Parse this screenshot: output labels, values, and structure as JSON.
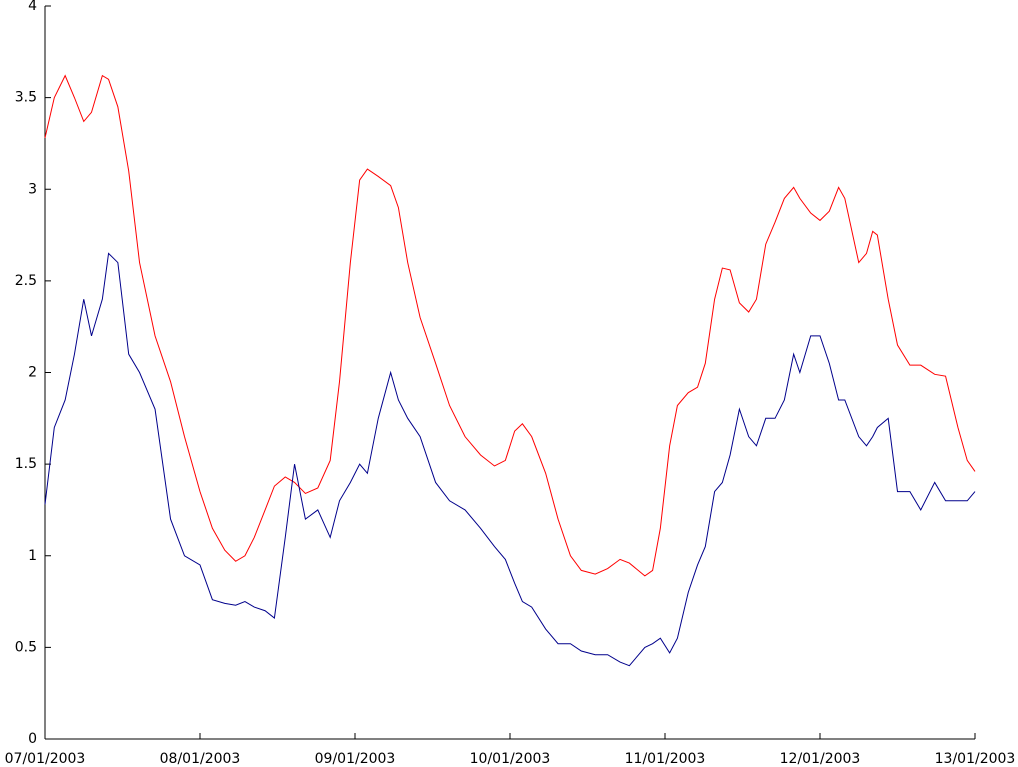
{
  "chart_data": {
    "type": "line",
    "x": [
      0,
      0.06,
      0.13,
      0.19,
      0.25,
      0.3,
      0.37,
      0.41,
      0.47,
      0.54,
      0.61,
      0.71,
      0.81,
      0.9,
      1.0,
      1.08,
      1.16,
      1.23,
      1.29,
      1.35,
      1.42,
      1.48,
      1.55,
      1.61,
      1.68,
      1.76,
      1.84,
      1.9,
      1.97,
      2.03,
      2.08,
      2.15,
      2.23,
      2.28,
      2.34,
      2.42,
      2.52,
      2.61,
      2.71,
      2.81,
      2.9,
      2.97,
      3.03,
      3.08,
      3.14,
      3.23,
      3.31,
      3.39,
      3.46,
      3.55,
      3.63,
      3.71,
      3.77,
      3.87,
      3.92,
      3.97,
      4.03,
      4.08,
      4.15,
      4.21,
      4.26,
      4.32,
      4.37,
      4.42,
      4.48,
      4.54,
      4.59,
      4.65,
      4.71,
      4.77,
      4.83,
      4.87,
      4.94,
      5.0,
      5.06,
      5.12,
      5.16,
      5.25,
      5.3,
      5.34,
      5.37,
      5.44,
      5.5,
      5.58,
      5.65,
      5.74,
      5.81,
      5.89,
      5.95,
      6.0
    ],
    "series": [
      {
        "color": "#ff0000",
        "values": [
          3.28,
          3.5,
          3.62,
          3.5,
          3.37,
          3.42,
          3.62,
          3.6,
          3.45,
          3.1,
          2.6,
          2.2,
          1.95,
          1.65,
          1.35,
          1.15,
          1.03,
          0.97,
          1.0,
          1.1,
          1.25,
          1.38,
          1.43,
          1.4,
          1.34,
          1.37,
          1.52,
          1.95,
          2.6,
          3.05,
          3.11,
          3.07,
          3.02,
          2.9,
          2.6,
          2.3,
          2.05,
          1.82,
          1.65,
          1.55,
          1.49,
          1.52,
          1.68,
          1.72,
          1.65,
          1.45,
          1.2,
          1.0,
          0.92,
          0.9,
          0.93,
          0.98,
          0.96,
          0.89,
          0.92,
          1.15,
          1.6,
          1.82,
          1.89,
          1.92,
          2.05,
          2.4,
          2.57,
          2.56,
          2.38,
          2.33,
          2.4,
          2.7,
          2.82,
          2.95,
          3.01,
          2.95,
          2.87,
          2.83,
          2.88,
          3.01,
          2.95,
          2.6,
          2.65,
          2.77,
          2.75,
          2.4,
          2.15,
          2.04,
          2.04,
          1.99,
          1.98,
          1.7,
          1.52,
          1.46
        ]
      },
      {
        "color": "#00008b",
        "values": [
          1.28,
          1.7,
          1.85,
          2.1,
          2.4,
          2.2,
          2.4,
          2.65,
          2.6,
          2.1,
          2.0,
          1.8,
          1.2,
          1.0,
          0.95,
          0.76,
          0.74,
          0.73,
          0.75,
          0.72,
          0.7,
          0.66,
          1.1,
          1.5,
          1.2,
          1.25,
          1.1,
          1.3,
          1.4,
          1.5,
          1.45,
          1.75,
          2.0,
          1.85,
          1.75,
          1.65,
          1.4,
          1.3,
          1.25,
          1.15,
          1.05,
          0.98,
          0.85,
          0.75,
          0.72,
          0.6,
          0.52,
          0.52,
          0.48,
          0.46,
          0.46,
          0.42,
          0.4,
          0.5,
          0.52,
          0.55,
          0.47,
          0.55,
          0.8,
          0.95,
          1.05,
          1.35,
          1.4,
          1.55,
          1.8,
          1.65,
          1.6,
          1.75,
          1.75,
          1.85,
          2.1,
          2.0,
          2.2,
          2.2,
          2.05,
          1.85,
          1.85,
          1.65,
          1.6,
          1.65,
          1.7,
          1.75,
          1.35,
          1.35,
          1.25,
          1.4,
          1.3,
          1.3,
          1.3,
          1.35
        ]
      }
    ],
    "xlim": [
      0,
      6
    ],
    "xticks": [
      {
        "value": 0,
        "label": "07/01/2003"
      },
      {
        "value": 1,
        "label": "08/01/2003"
      },
      {
        "value": 2,
        "label": "09/01/2003"
      },
      {
        "value": 3,
        "label": "10/01/2003"
      },
      {
        "value": 4,
        "label": "11/01/2003"
      },
      {
        "value": 5,
        "label": "12/01/2003"
      },
      {
        "value": 6,
        "label": "13/01/2003"
      }
    ],
    "ylim": [
      0,
      4
    ],
    "yticks": [
      0,
      0.5,
      1,
      1.5,
      2,
      2.5,
      3,
      3.5,
      4
    ]
  }
}
